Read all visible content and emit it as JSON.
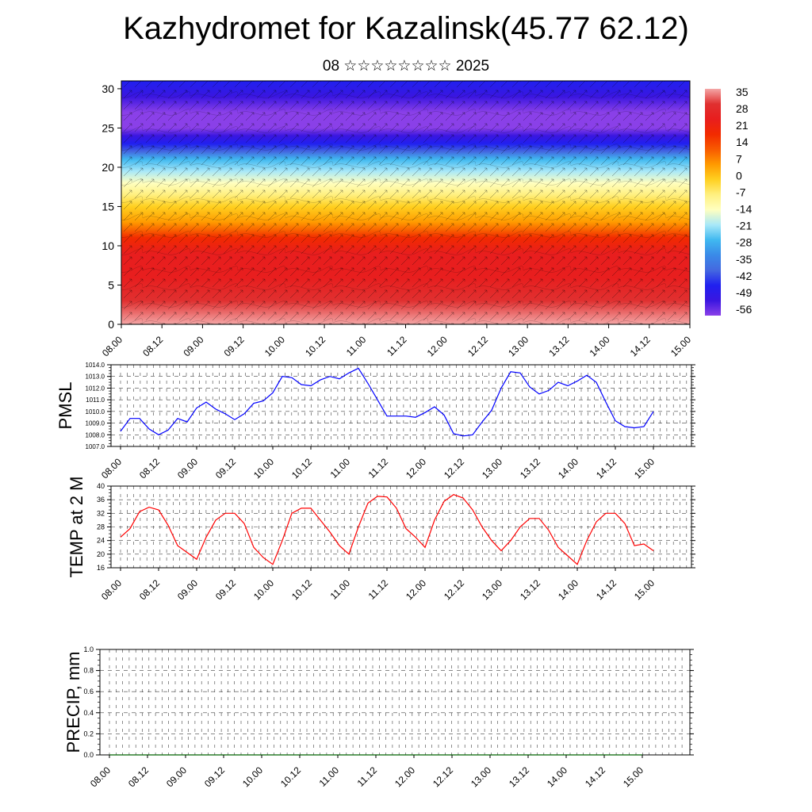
{
  "title": "Kazhydromet for Kazalinsk(45.77 62.12)",
  "subtitle": "08 ☆☆☆☆☆☆☆☆ 2025",
  "chart_data": [
    {
      "type": "heatmap",
      "description_units": "temperature (°C) vs height, with wind barbs",
      "x_ticks": [
        "08.00",
        "08.12",
        "09.00",
        "09.12",
        "10.00",
        "10.12",
        "11.00",
        "11.12",
        "12.00",
        "12.12",
        "13.00",
        "13.12",
        "14.00",
        "14.12",
        "15.00"
      ],
      "y_ticks": [
        0,
        5,
        10,
        15,
        20,
        25,
        30
      ],
      "ylim": [
        0,
        31
      ],
      "profile": [
        {
          "y": 0,
          "value": 33
        },
        {
          "y": 3,
          "value": 30
        },
        {
          "y": 6,
          "value": 25
        },
        {
          "y": 9,
          "value": 20
        },
        {
          "y": 11,
          "value": 14
        },
        {
          "y": 13,
          "value": 7
        },
        {
          "y": 15,
          "value": 0
        },
        {
          "y": 16.5,
          "value": -7
        },
        {
          "y": 18,
          "value": -14
        },
        {
          "y": 19.5,
          "value": -21
        },
        {
          "y": 21,
          "value": -28
        },
        {
          "y": 22,
          "value": -35
        },
        {
          "y": 23,
          "value": -42
        },
        {
          "y": 24,
          "value": -49
        },
        {
          "y": 25,
          "value": -56
        },
        {
          "y": 27,
          "value": -56
        },
        {
          "y": 29,
          "value": -49
        },
        {
          "y": 31,
          "value": -42
        }
      ],
      "colorbar": {
        "labels": [
          "35",
          "28",
          "21",
          "14",
          "7",
          "0",
          "-7",
          "-14",
          "-21",
          "-28",
          "-35",
          "-42",
          "-49",
          "-56"
        ],
        "stops": [
          "#f4a6a6",
          "#e03030",
          "#e81e1e",
          "#f22a00",
          "#f85a00",
          "#ff9a00",
          "#ffd020",
          "#fff080",
          "#ffffc0",
          "#a8e8f8",
          "#40b8f0",
          "#3a8ae8",
          "#4468e0",
          "#2020f0",
          "#3a16e0",
          "#8a40e8"
        ]
      }
    },
    {
      "type": "line",
      "ylabel": "PMSL",
      "ylim": [
        1007.0,
        1014.0
      ],
      "y_ticks": [
        "1007.0",
        "1008.0",
        "1009.0",
        "1010.0",
        "1011.0",
        "1012.0",
        "1013.0",
        "1014.0"
      ],
      "x_ticks": [
        "08.00",
        "08.12",
        "09.00",
        "09.12",
        "10.00",
        "10.12",
        "11.00",
        "11.12",
        "12.00",
        "12.12",
        "13.00",
        "13.12",
        "14.00",
        "14.12",
        "15.00"
      ],
      "color": "#0000ff",
      "values": [
        1008.3,
        1009.4,
        1009.4,
        1008.5,
        1008.0,
        1008.4,
        1009.4,
        1009.1,
        1010.3,
        1010.8,
        1010.2,
        1009.8,
        1009.3,
        1009.8,
        1010.7,
        1010.9,
        1011.6,
        1013.0,
        1012.9,
        1012.3,
        1012.2,
        1012.7,
        1013.0,
        1012.8,
        1013.3,
        1013.7,
        1012.4,
        1011.0,
        1009.6,
        1009.6,
        1009.6,
        1009.5,
        1009.9,
        1010.4,
        1009.7,
        1008.1,
        1007.9,
        1008.0,
        1009.1,
        1010.1,
        1012.0,
        1013.4,
        1013.3,
        1012.1,
        1011.5,
        1011.8,
        1012.5,
        1012.2,
        1012.6,
        1013.1,
        1012.5,
        1010.8,
        1009.2,
        1008.7,
        1008.6,
        1008.7,
        1010.0
      ]
    },
    {
      "type": "line",
      "ylabel": "TEMP at 2 M",
      "ylim": [
        16,
        40
      ],
      "y_ticks": [
        "16",
        "20",
        "24",
        "28",
        "32",
        "36",
        "40"
      ],
      "x_ticks": [
        "08.00",
        "08.12",
        "09.00",
        "09.12",
        "10.00",
        "10.12",
        "11.00",
        "11.12",
        "12.00",
        "12.12",
        "13.00",
        "13.12",
        "14.00",
        "14.12",
        "15.00"
      ],
      "color": "#ff0000",
      "values": [
        25,
        27.5,
        32.5,
        33.8,
        33,
        28.5,
        22.5,
        20.5,
        18.5,
        25,
        30,
        32,
        32,
        29,
        22,
        19,
        17,
        24,
        32,
        33.5,
        33.5,
        30,
        26.5,
        22.5,
        20,
        28,
        35,
        37,
        36.8,
        33.5,
        27.5,
        25,
        22,
        30,
        35.5,
        37.5,
        36.5,
        33,
        28,
        24,
        21,
        24,
        28,
        30.5,
        30.5,
        27,
        22,
        19.5,
        17,
        24,
        29.5,
        32,
        32,
        29,
        22.5,
        23,
        21
      ]
    },
    {
      "type": "line",
      "ylabel": "PRECIP, mm",
      "ylim": [
        0.0,
        1.0
      ],
      "y_ticks": [
        "0.0",
        "0.2",
        "0.4",
        "0.6",
        "0.8",
        "1.0"
      ],
      "x_ticks": [
        "08.00",
        "08.12",
        "09.00",
        "09.12",
        "10.00",
        "10.12",
        "11.00",
        "11.12",
        "12.00",
        "12.12",
        "13.00",
        "13.12",
        "14.00",
        "14.12",
        "15.00"
      ],
      "color": "#006400",
      "values": [
        0,
        0,
        0,
        0,
        0,
        0,
        0,
        0,
        0,
        0,
        0,
        0,
        0,
        0,
        0,
        0,
        0,
        0,
        0,
        0,
        0,
        0,
        0,
        0,
        0,
        0,
        0,
        0,
        0,
        0,
        0,
        0,
        0,
        0,
        0,
        0,
        0,
        0,
        0,
        0,
        0,
        0,
        0,
        0,
        0,
        0,
        0,
        0,
        0,
        0,
        0,
        0,
        0,
        0,
        0,
        0,
        0
      ]
    }
  ]
}
